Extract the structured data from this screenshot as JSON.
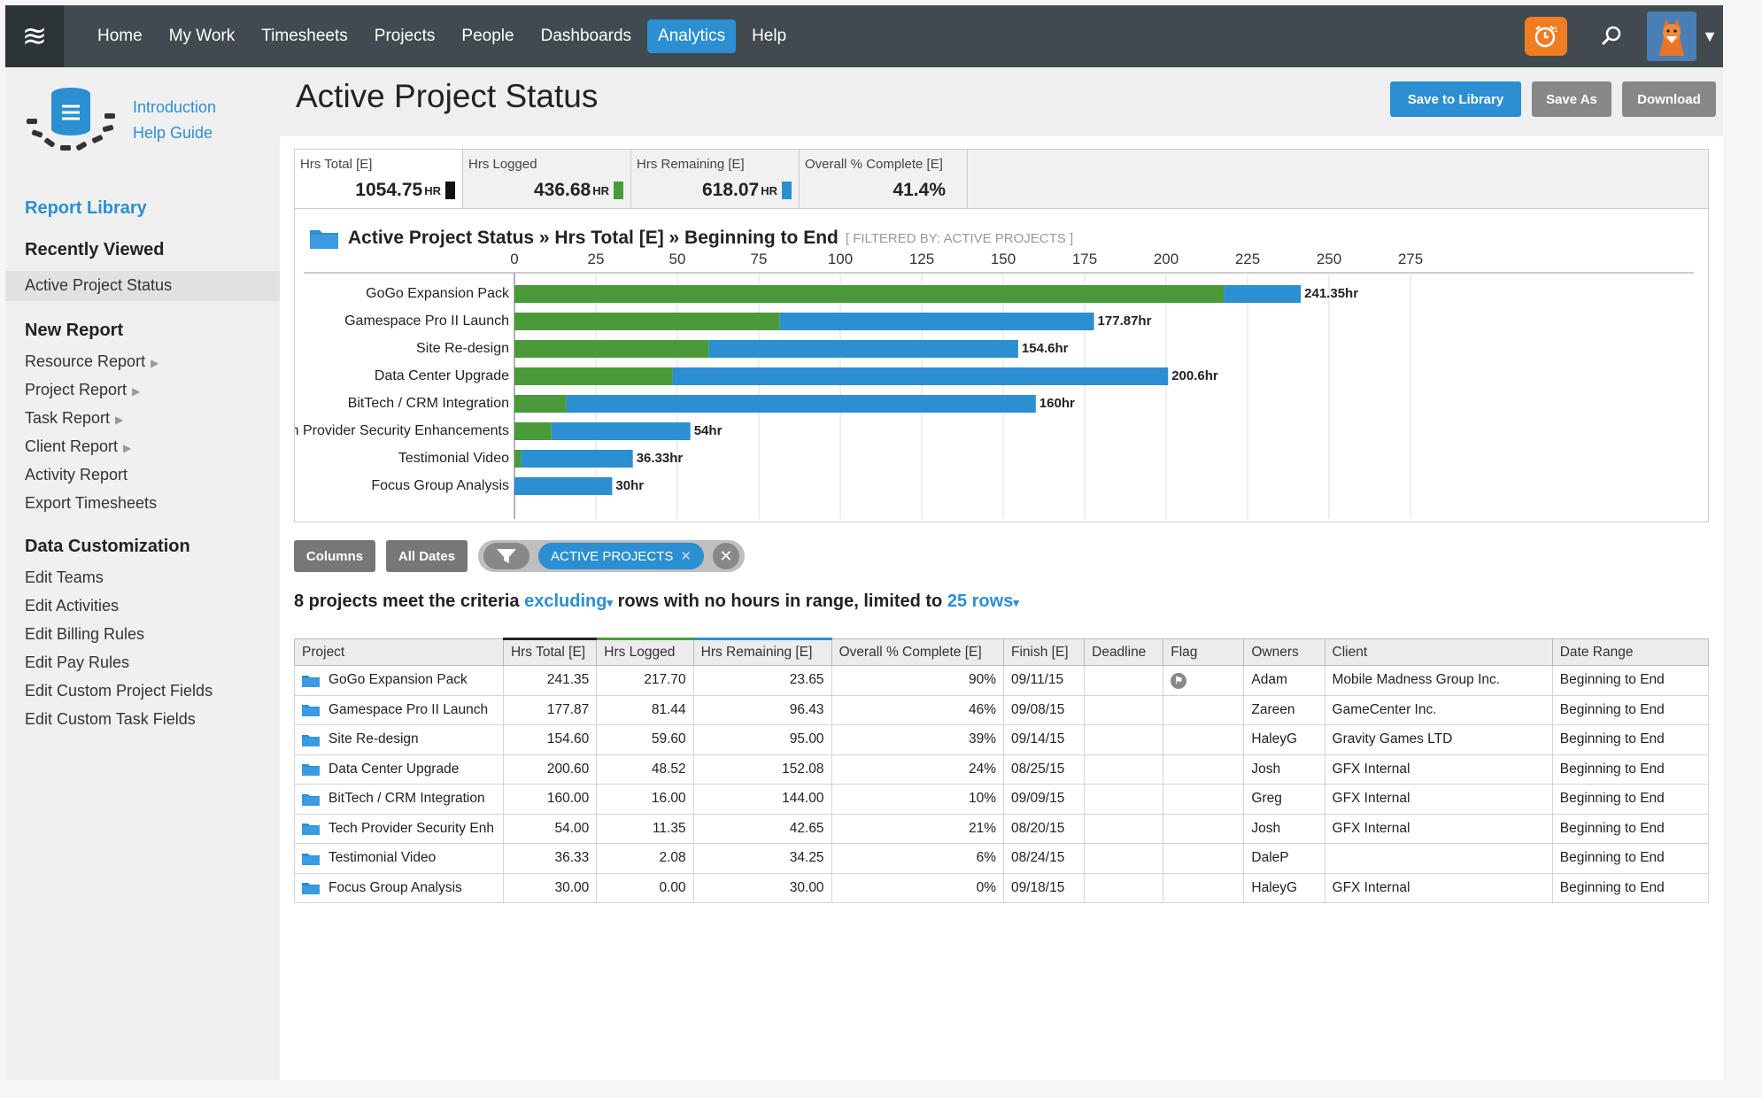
{
  "nav": {
    "items": [
      "Home",
      "My Work",
      "Timesheets",
      "Projects",
      "People",
      "Dashboards",
      "Analytics",
      "Help"
    ],
    "active": "Analytics"
  },
  "sidebar": {
    "help_links": [
      "Introduction",
      "Help Guide"
    ],
    "report_library": "Report Library",
    "recently_viewed": "Recently Viewed",
    "recent_items": [
      "Active Project Status"
    ],
    "new_report": "New Report",
    "new_report_items": [
      {
        "label": "Resource Report",
        "submenu": true
      },
      {
        "label": "Project Report",
        "submenu": true
      },
      {
        "label": "Task Report",
        "submenu": true
      },
      {
        "label": "Client Report",
        "submenu": true
      },
      {
        "label": "Activity Report",
        "submenu": false
      },
      {
        "label": "Export Timesheets",
        "submenu": false
      }
    ],
    "data_customization": "Data Customization",
    "customization_items": [
      "Edit Teams",
      "Edit Activities",
      "Edit Billing Rules",
      "Edit Pay Rules",
      "Edit Custom Project Fields",
      "Edit Custom Task Fields"
    ]
  },
  "header": {
    "title": "Active Project Status",
    "save_library": "Save to Library",
    "save_as": "Save As",
    "download": "Download"
  },
  "summary": [
    {
      "label": "Hrs Total [E]",
      "value": "1054.75",
      "unit": "HR",
      "color": "#111111"
    },
    {
      "label": "Hrs Logged",
      "value": "436.68",
      "unit": "HR",
      "color": "#4a9a3a"
    },
    {
      "label": "Hrs Remaining [E]",
      "value": "618.07",
      "unit": "HR",
      "color": "#2b8fd1"
    },
    {
      "label": "Overall % Complete [E]",
      "value": "41.4%",
      "unit": "",
      "color": ""
    }
  ],
  "chart_title": {
    "text": "Active Project Status » Hrs Total [E] » Beginning to End",
    "filter": "[ FILTERED BY: ACTIVE PROJECTS ]"
  },
  "chart_data": {
    "type": "bar",
    "orientation": "horizontal",
    "stacked": true,
    "categories": [
      "GoGo Expansion Pack",
      "Gamespace Pro II Launch",
      "Site Re-design",
      "Data Center Upgrade",
      "BitTech / CRM Integration",
      "Tech Provider Security Enhancements",
      "Testimonial Video",
      "Focus Group Analysis"
    ],
    "series": [
      {
        "values": [
          217.7,
          81.44,
          59.6,
          48.52,
          16.0,
          11.35,
          2.08,
          0.0
        ],
        "color": "#4a9a3a"
      },
      {
        "values": [
          23.65,
          96.43,
          95.0,
          152.08,
          144.0,
          42.65,
          34.25,
          30.0
        ],
        "color": "#2b8fd1"
      }
    ],
    "data_labels": [
      "241.35hr",
      "177.87hr",
      "154.6hr",
      "200.6hr",
      "160hr",
      "54hr",
      "36.33hr",
      "30hr"
    ],
    "x_ticks": [
      0,
      25,
      50,
      75,
      100,
      125,
      150,
      175,
      200,
      225,
      250,
      275
    ],
    "xlim": [
      0,
      275
    ],
    "grid": true
  },
  "filters": {
    "columns": "Columns",
    "all_dates": "All Dates",
    "active_chip": "ACTIVE PROJECTS"
  },
  "criteria": {
    "prefix": "8 projects meet the criteria",
    "excluding": "excluding",
    "middle": "rows with no hours in range, limited to",
    "rows": "25 rows"
  },
  "table": {
    "headers": [
      "Project",
      "Hrs Total [E]",
      "Hrs Logged",
      "Hrs Remaining [E]",
      "Overall % Complete [E]",
      "Finish [E]",
      "Deadline",
      "Flag",
      "Owners",
      "Client",
      "Date Range"
    ],
    "rows": [
      {
        "project": "GoGo Expansion Pack",
        "total": "241.35",
        "logged": "217.70",
        "remaining": "23.65",
        "complete": "90%",
        "finish": "09/11/15",
        "deadline": "",
        "flag": true,
        "owner": "Adam",
        "client": "Mobile Madness Group Inc.",
        "range": "Beginning to End"
      },
      {
        "project": "Gamespace Pro II Launch",
        "total": "177.87",
        "logged": "81.44",
        "remaining": "96.43",
        "complete": "46%",
        "finish": "09/08/15",
        "deadline": "",
        "flag": false,
        "owner": "Zareen",
        "client": "GameCenter Inc.",
        "range": "Beginning to End"
      },
      {
        "project": "Site Re-design",
        "total": "154.60",
        "logged": "59.60",
        "remaining": "95.00",
        "complete": "39%",
        "finish": "09/14/15",
        "deadline": "",
        "flag": false,
        "owner": "HaleyG",
        "client": "Gravity Games LTD",
        "range": "Beginning to End"
      },
      {
        "project": "Data Center Upgrade",
        "total": "200.60",
        "logged": "48.52",
        "remaining": "152.08",
        "complete": "24%",
        "finish": "08/25/15",
        "deadline": "",
        "flag": false,
        "owner": "Josh",
        "client": "GFX Internal",
        "range": "Beginning to End"
      },
      {
        "project": "BitTech / CRM Integration",
        "total": "160.00",
        "logged": "16.00",
        "remaining": "144.00",
        "complete": "10%",
        "finish": "09/09/15",
        "deadline": "",
        "flag": false,
        "owner": "Greg",
        "client": "GFX Internal",
        "range": "Beginning to End"
      },
      {
        "project": "Tech Provider Security Enhancements",
        "total": "54.00",
        "logged": "11.35",
        "remaining": "42.65",
        "complete": "21%",
        "finish": "08/20/15",
        "deadline": "",
        "flag": false,
        "owner": "Josh",
        "client": "GFX Internal",
        "range": "Beginning to End"
      },
      {
        "project": "Testimonial Video",
        "total": "36.33",
        "logged": "2.08",
        "remaining": "34.25",
        "complete": "6%",
        "finish": "08/24/15",
        "deadline": "",
        "flag": false,
        "owner": "DaleP",
        "client": "",
        "range": "Beginning to End"
      },
      {
        "project": "Focus Group Analysis",
        "total": "30.00",
        "logged": "0.00",
        "remaining": "30.00",
        "complete": "0%",
        "finish": "09/18/15",
        "deadline": "",
        "flag": false,
        "owner": "HaleyG",
        "client": "GFX Internal",
        "range": "Beginning to End"
      }
    ]
  }
}
